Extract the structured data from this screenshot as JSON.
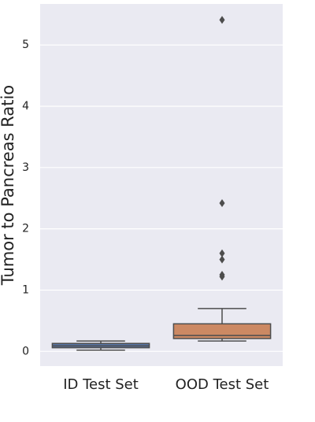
{
  "chart_data": {
    "type": "box",
    "ylabel": "Tumor to Pancreas Ratio",
    "categories": [
      "ID Test Set",
      "OOD Test Set"
    ],
    "boxes": [
      {
        "whislo": 0.02,
        "q1": 0.06,
        "med": 0.09,
        "q3": 0.13,
        "whishi": 0.17,
        "fliers": []
      },
      {
        "whislo": 0.17,
        "q1": 0.21,
        "med": 0.26,
        "q3": 0.45,
        "whishi": 0.7,
        "fliers": [
          5.41,
          2.42,
          1.6,
          1.5,
          1.25,
          1.22
        ]
      }
    ],
    "colors": [
      "#5975a4",
      "#cc8963"
    ],
    "ylim": [
      -0.24,
      5.67
    ],
    "yticks": [
      0,
      1,
      2,
      3,
      4,
      5
    ],
    "grid": true
  }
}
